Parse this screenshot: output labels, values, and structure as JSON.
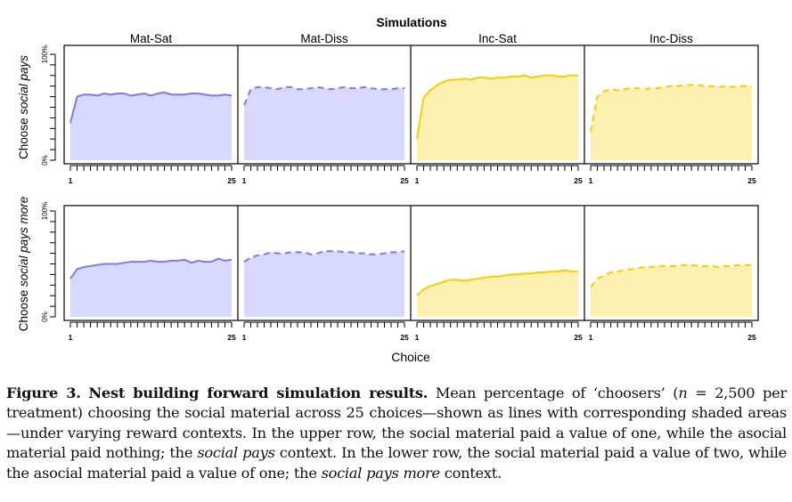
{
  "chart_data": {
    "type": "area",
    "title": "Simulations",
    "xlabel": "Choice",
    "x_ticks": [
      1,
      25
    ],
    "x_range": [
      1,
      25
    ],
    "ylim": [
      0,
      100
    ],
    "y_tick_labels": [
      "0%",
      "100%"
    ],
    "y_minor_tick_step": 10,
    "grid": false,
    "columns": [
      "Mat-Sat",
      "Mat-Diss",
      "Inc-Sat",
      "Inc-Diss"
    ],
    "rows": [
      {
        "ylabel_prefix": "Choose ",
        "ylabel_italic": "social pays",
        "series": [
          {
            "name": "Mat-Sat",
            "color": "#7b7bf0",
            "fill": "#d8d8fc",
            "dashed": false,
            "values": [
              35,
              60,
              62,
              62,
              61,
              63,
              62,
              63,
              63,
              61,
              62,
              63,
              61,
              63,
              64,
              62,
              62,
              62,
              63,
              63,
              62,
              61,
              61,
              62,
              61
            ]
          },
          {
            "name": "Mat-Diss",
            "color": "#7b7bf0",
            "fill": "#d8d8fc",
            "dashed": false,
            "dash": true,
            "values": [
              52,
              67,
              69,
              69,
              68,
              67,
              69,
              69,
              67,
              67,
              68,
              69,
              68,
              67,
              68,
              69,
              68,
              68,
              69,
              68,
              67,
              67,
              67,
              68,
              68
            ]
          },
          {
            "name": "Inc-Sat",
            "color": "#f5d000",
            "fill": "#fdf0b0",
            "dashed": false,
            "values": [
              20,
              59,
              66,
              71,
              74,
              76,
              76,
              77,
              76,
              78,
              78,
              77,
              78,
              78,
              79,
              79,
              80,
              78,
              79,
              80,
              80,
              79,
              79,
              80,
              80
            ]
          },
          {
            "name": "Inc-Diss",
            "color": "#f5d000",
            "fill": "#fdf0b0",
            "dashed": true,
            "values": [
              27,
              60,
              65,
              67,
              66,
              67,
              68,
              68,
              67,
              68,
              68,
              69,
              70,
              70,
              71,
              71,
              71,
              70,
              70,
              69,
              70,
              69,
              70,
              70,
              70
            ]
          }
        ]
      },
      {
        "ylabel_prefix": "Choose ",
        "ylabel_italic": "social pays more",
        "series": [
          {
            "name": "Mat-Sat",
            "color": "#7b7bf0",
            "fill": "#d8d8fc",
            "dashed": false,
            "values": [
              36,
              45,
              47,
              48,
              49,
              50,
              50,
              50,
              51,
              52,
              52,
              52,
              53,
              52,
              52,
              53,
              53,
              54,
              51,
              53,
              52,
              52,
              55,
              53,
              54
            ]
          },
          {
            "name": "Mat-Diss",
            "color": "#7b7bf0",
            "fill": "#d8d8fc",
            "dashed": true,
            "values": [
              52,
              56,
              58,
              59,
              61,
              60,
              60,
              61,
              61,
              61,
              59,
              60,
              62,
              62,
              62,
              61,
              61,
              60,
              60,
              59,
              59,
              60,
              61,
              61,
              62
            ]
          },
          {
            "name": "Inc-Sat",
            "color": "#f5d000",
            "fill": "#fdf0b0",
            "dashed": false,
            "values": [
              20,
              26,
              29,
              31,
              33,
              35,
              35,
              34,
              35,
              36,
              37,
              38,
              38,
              39,
              40,
              40,
              41,
              41,
              42,
              42,
              43,
              43,
              44,
              43,
              43
            ]
          },
          {
            "name": "Inc-Diss",
            "color": "#f5d000",
            "fill": "#fdf0b0",
            "dashed": true,
            "values": [
              28,
              36,
              39,
              42,
              43,
              44,
              45,
              46,
              47,
              47,
              48,
              48,
              48,
              48,
              49,
              49,
              48,
              48,
              48,
              47,
              48,
              48,
              49,
              49,
              49
            ]
          }
        ]
      }
    ]
  },
  "caption": {
    "label": "Figure 3.",
    "title": "Nest building forward simulation results.",
    "text_1": " Mean percentage of ‘choosers’ (",
    "n_symbol": "n",
    "text_2": " = 2,500 per treatment) choosing the social material across 25 choices—shown as lines with corresponding shaded areas—under varying reward contexts. In the upper row, the social material paid a value of one, while the asocial material paid nothing; the ",
    "italic_1": "social pays",
    "text_3": " context. In the lower row, the social material paid a value of two, while the asocial material paid a value of one; the ",
    "italic_2": "social pays more",
    "text_4": " context."
  }
}
